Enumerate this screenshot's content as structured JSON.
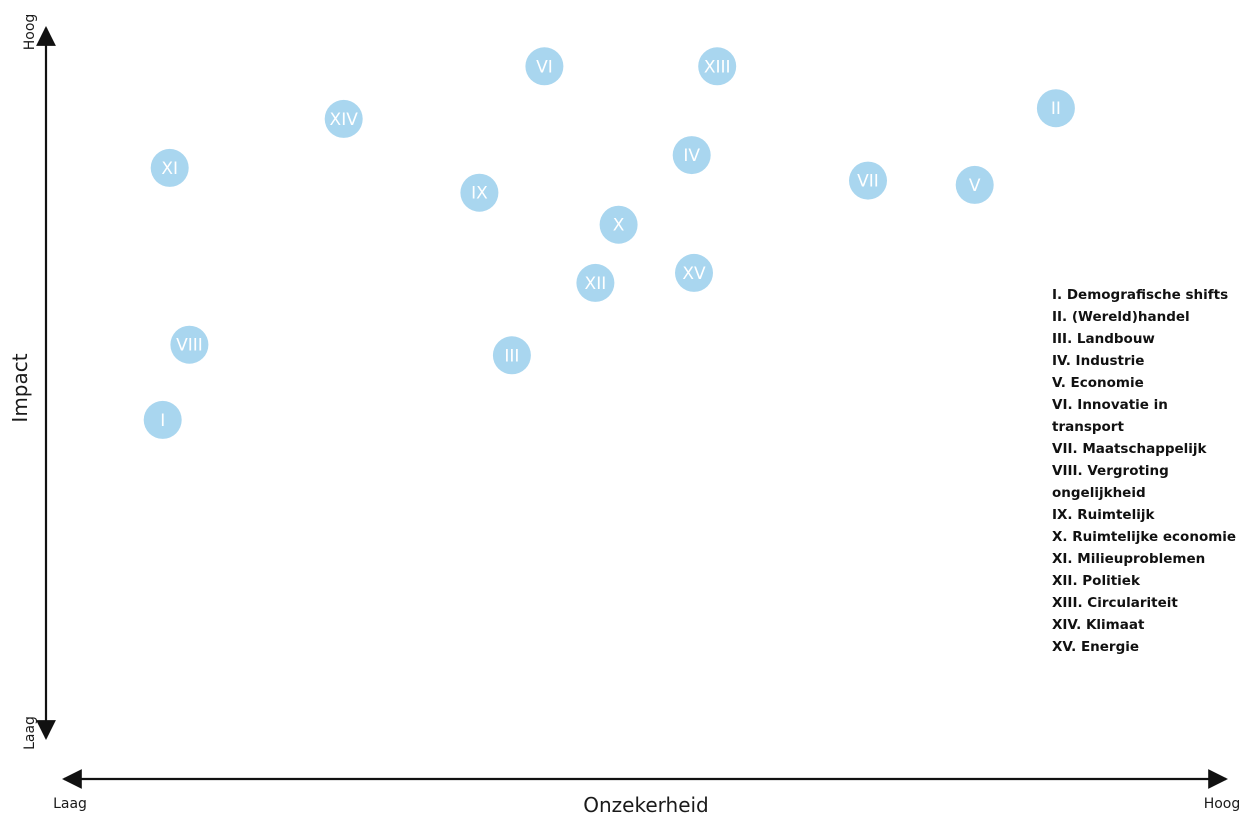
{
  "chart_data": {
    "type": "scatter",
    "xlabel": "Onzekerheid",
    "ylabel": "Impact",
    "x_low_label": "Laag",
    "x_high_label": "Hoog",
    "y_low_label": "Laag",
    "y_high_label": "Hoog",
    "xlim": [
      0,
      100
    ],
    "ylim": [
      0,
      100
    ],
    "grid": false,
    "marker_color": "#a9d6ef",
    "points": [
      {
        "label": "I",
        "x": 9.2,
        "y": 44.8
      },
      {
        "label": "II",
        "x": 86.2,
        "y": 88.7
      },
      {
        "label": "III",
        "x": 39.3,
        "y": 53.9
      },
      {
        "label": "IV",
        "x": 54.8,
        "y": 82.1
      },
      {
        "label": "V",
        "x": 79.2,
        "y": 77.9
      },
      {
        "label": "VI",
        "x": 42.1,
        "y": 94.6
      },
      {
        "label": "VII",
        "x": 70.0,
        "y": 78.5
      },
      {
        "label": "VIII",
        "x": 11.5,
        "y": 55.4
      },
      {
        "label": "IX",
        "x": 36.5,
        "y": 76.8
      },
      {
        "label": "X",
        "x": 48.5,
        "y": 72.3
      },
      {
        "label": "XI",
        "x": 9.8,
        "y": 80.3
      },
      {
        "label": "XII",
        "x": 46.5,
        "y": 64.1
      },
      {
        "label": "XIII",
        "x": 57.0,
        "y": 94.6
      },
      {
        "label": "XIV",
        "x": 24.8,
        "y": 87.2
      },
      {
        "label": "XV",
        "x": 55.0,
        "y": 65.5
      }
    ]
  },
  "legend": [
    "I. Demografische shifts",
    "II. (Wereld)handel",
    "III. Landbouw",
    "IV. Industrie",
    "V. Economie",
    "VI. Innovatie in transport",
    "VII. Maatschappelijk",
    "VIII. Vergroting ongelijkheid",
    "IX. Ruimtelijk",
    "X. Ruimtelijke economie",
    "XI. Milieuproblemen",
    "XII. Politiek",
    "XIII. Circulariteit",
    "XIV. Klimaat",
    "XV. Energie"
  ]
}
